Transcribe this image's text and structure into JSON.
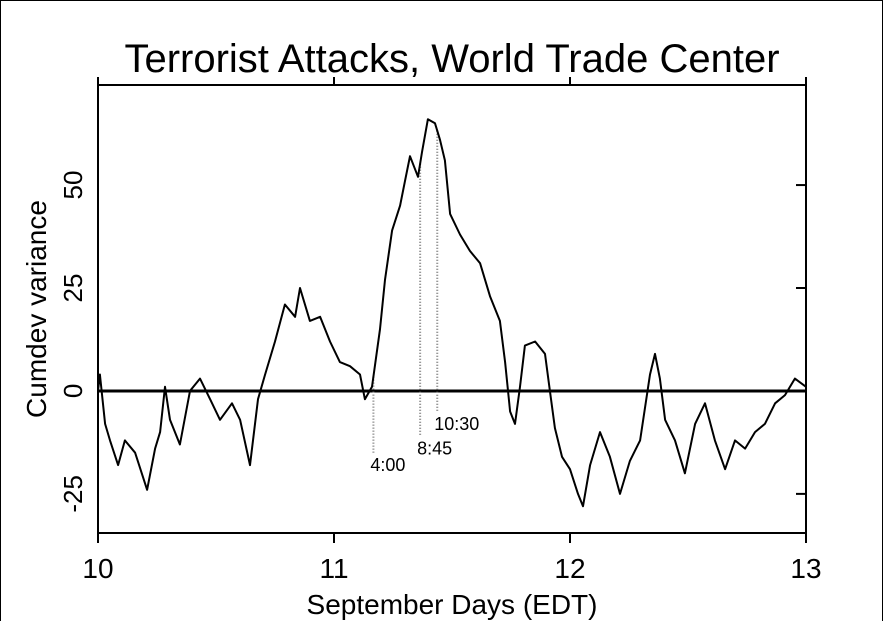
{
  "chart_data": {
    "type": "line",
    "title": "Terrorist Attacks, World Trade Center",
    "xlabel": "September Days (EDT)",
    "ylabel": "Cumdev variance",
    "x": [
      10.0,
      10.008,
      10.03,
      10.051,
      10.085,
      10.114,
      10.157,
      10.208,
      10.242,
      10.263,
      10.284,
      10.305,
      10.347,
      10.39,
      10.432,
      10.475,
      10.517,
      10.568,
      10.602,
      10.644,
      10.678,
      10.708,
      10.75,
      10.792,
      10.835,
      10.856,
      10.898,
      10.941,
      10.983,
      11.025,
      11.068,
      11.11,
      11.131,
      11.161,
      11.195,
      11.216,
      11.246,
      11.28,
      11.301,
      11.322,
      11.356,
      11.373,
      11.398,
      11.428,
      11.449,
      11.47,
      11.492,
      11.534,
      11.576,
      11.619,
      11.661,
      11.703,
      11.725,
      11.746,
      11.767,
      11.788,
      11.809,
      11.852,
      11.894,
      11.915,
      11.936,
      11.966,
      12.0,
      12.034,
      12.055,
      12.085,
      12.127,
      12.169,
      12.212,
      12.254,
      12.297,
      12.339,
      12.36,
      12.381,
      12.403,
      12.445,
      12.487,
      12.53,
      12.572,
      12.614,
      12.657,
      12.699,
      12.742,
      12.784,
      12.826,
      12.869,
      12.911,
      12.953,
      13.0
    ],
    "series": [
      {
        "color": "#000000",
        "values": [
          0,
          4,
          -8,
          -12,
          -18,
          -12,
          -15,
          -24,
          -14,
          -10,
          1,
          -7,
          -13,
          0,
          3,
          -2,
          -7,
          -3,
          -7,
          -18,
          -2,
          4,
          12,
          21,
          18,
          25,
          17,
          18,
          12,
          7,
          6,
          4,
          -2,
          1,
          15,
          27,
          39,
          45,
          51,
          57,
          52,
          58,
          66,
          65,
          61,
          56,
          43,
          38,
          34,
          31,
          23,
          17,
          7,
          -5,
          -8,
          1,
          11,
          12,
          9,
          0,
          -9,
          -16,
          -19,
          -25,
          -28,
          -18,
          -10,
          -16,
          -25,
          -17,
          -12,
          4,
          9,
          3,
          -7,
          -12,
          -20,
          -8,
          -3,
          -12,
          -19,
          -12,
          -14,
          -10,
          -8,
          -3,
          -1,
          3,
          1
        ]
      }
    ],
    "annotations": [
      {
        "x": 11.167,
        "y": -18,
        "label": "4:00"
      },
      {
        "x": 11.365,
        "y": -14,
        "label": "8:45"
      },
      {
        "x": 11.4375,
        "y": -8,
        "label": "10:30"
      }
    ],
    "xlim": [
      10,
      13
    ],
    "xticks": [
      10,
      11,
      12,
      13
    ],
    "ylim": [
      -34.5,
      74.3
    ],
    "yticks": [
      -25,
      0,
      25,
      50
    ]
  }
}
